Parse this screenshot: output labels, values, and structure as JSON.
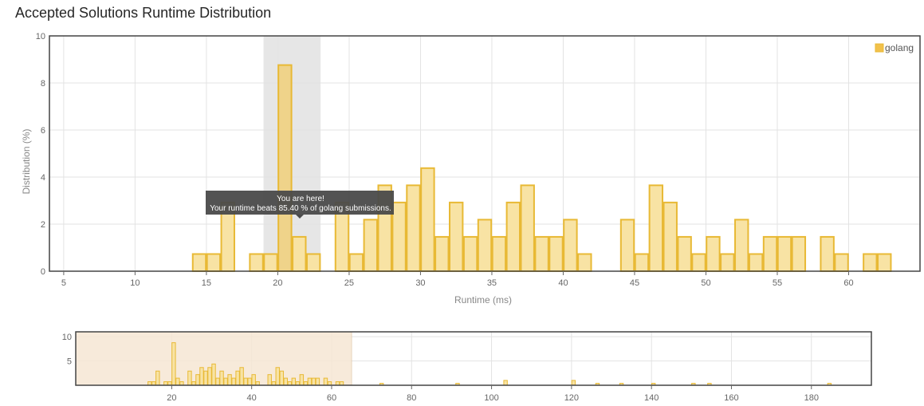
{
  "header": {
    "title": "Accepted Solutions Runtime Distribution"
  },
  "tooltip": {
    "line1": "You are here!",
    "line2": "Your runtime beats 85.40 % of golang submissions."
  },
  "legend": {
    "label": "golang",
    "color": "#f2c14b"
  },
  "colors": {
    "bar_fill": "#f8e3a4",
    "bar_stroke": "#e8b935",
    "highlight": "#e6e6e6",
    "navigator_mask": "#f6e7d4"
  },
  "chart_data": [
    {
      "type": "bar",
      "title": "",
      "xlabel": "Runtime (ms)",
      "ylabel": "Distribution (%)",
      "xlim": [
        4,
        65
      ],
      "ylim": [
        0,
        10
      ],
      "xticks": [
        5,
        10,
        15,
        20,
        25,
        30,
        35,
        40,
        45,
        50,
        55,
        60
      ],
      "yticks": [
        0,
        2,
        4,
        6,
        8,
        10
      ],
      "bin_width": 1,
      "highlight_range": [
        19,
        23
      ],
      "your_runtime": 20,
      "grid": true,
      "legend_position": "top-right",
      "series": [
        {
          "name": "golang",
          "x": [
            14,
            15,
            16,
            18,
            19,
            20,
            21,
            22,
            24,
            25,
            26,
            27,
            28,
            29,
            30,
            31,
            32,
            33,
            34,
            35,
            36,
            37,
            38,
            39,
            40,
            41,
            44,
            45,
            46,
            47,
            48,
            49,
            50,
            51,
            52,
            53,
            54,
            55,
            56,
            58,
            59,
            61,
            62
          ],
          "values": [
            0.73,
            0.73,
            2.92,
            0.73,
            0.73,
            8.76,
            1.46,
            0.73,
            2.92,
            0.73,
            2.19,
            3.65,
            2.92,
            3.65,
            4.38,
            1.46,
            2.92,
            1.46,
            2.19,
            1.46,
            2.92,
            3.65,
            1.46,
            1.46,
            2.19,
            0.73,
            2.19,
            0.73,
            3.65,
            2.92,
            1.46,
            0.73,
            1.46,
            0.73,
            2.19,
            0.73,
            1.46,
            1.46,
            1.46,
            1.46,
            0.73,
            0.73,
            0.73
          ]
        }
      ]
    },
    {
      "type": "bar",
      "title": "",
      "xlabel": "",
      "ylabel": "",
      "xlim": [
        -4,
        195
      ],
      "ylim": [
        0,
        11
      ],
      "xticks": [
        20,
        40,
        60,
        80,
        100,
        120,
        140,
        160,
        180
      ],
      "yticks": [
        5,
        10
      ],
      "selected_range": [
        -4,
        65
      ],
      "grid": true,
      "series": [
        {
          "name": "golang",
          "x": [
            14,
            15,
            16,
            18,
            19,
            20,
            21,
            22,
            24,
            25,
            26,
            27,
            28,
            29,
            30,
            31,
            32,
            33,
            34,
            35,
            36,
            37,
            38,
            39,
            40,
            41,
            44,
            45,
            46,
            47,
            48,
            49,
            50,
            51,
            52,
            53,
            54,
            55,
            56,
            58,
            59,
            61,
            62,
            72,
            91,
            103,
            120,
            126,
            132,
            140,
            150,
            154,
            184
          ],
          "values": [
            0.73,
            0.73,
            2.92,
            0.73,
            0.73,
            8.76,
            1.46,
            0.73,
            2.92,
            0.73,
            2.19,
            3.65,
            2.92,
            3.65,
            4.38,
            1.46,
            2.92,
            1.46,
            2.19,
            1.46,
            2.92,
            3.65,
            1.46,
            1.46,
            2.19,
            0.73,
            2.19,
            0.73,
            3.65,
            2.92,
            1.46,
            0.73,
            1.46,
            0.73,
            2.19,
            0.73,
            1.46,
            1.46,
            1.46,
            1.46,
            0.73,
            0.73,
            0.73,
            0.4,
            0.4,
            1.0,
            1.0,
            0.4,
            0.4,
            0.4,
            0.4,
            0.4,
            0.4
          ]
        }
      ]
    }
  ]
}
